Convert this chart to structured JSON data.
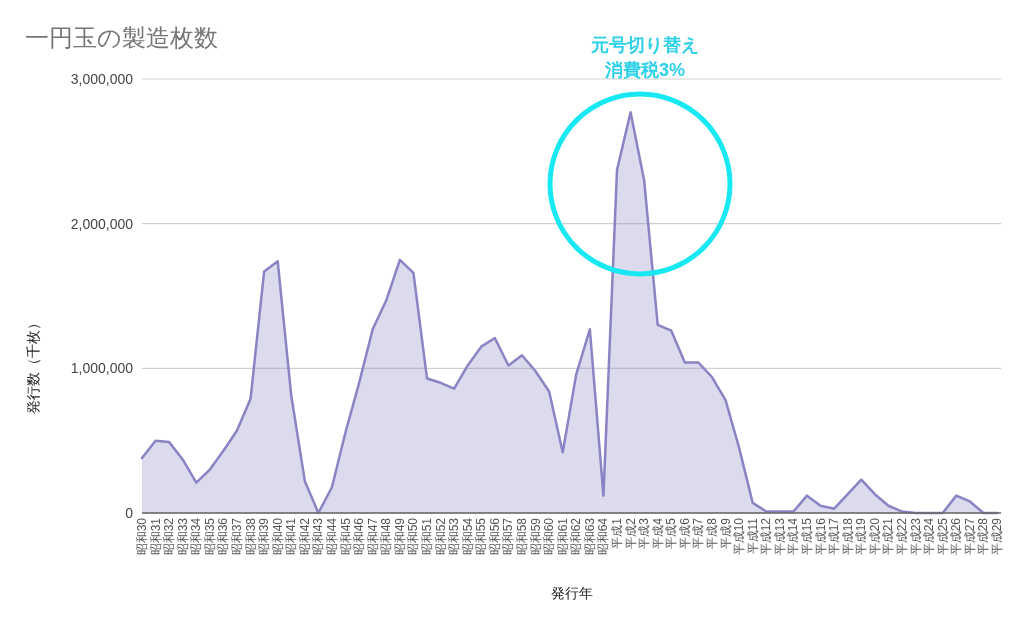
{
  "chart_data": {
    "type": "area",
    "title": "一円玉の製造枚数",
    "xlabel": "発行年",
    "ylabel": "発行数（千枚）",
    "categories": [
      "昭和30",
      "昭和31",
      "昭和32",
      "昭和33",
      "昭和34",
      "昭和35",
      "昭和36",
      "昭和37",
      "昭和38",
      "昭和39",
      "昭和40",
      "昭和41",
      "昭和42",
      "昭和43",
      "昭和44",
      "昭和45",
      "昭和46",
      "昭和47",
      "昭和48",
      "昭和49",
      "昭和50",
      "昭和51",
      "昭和52",
      "昭和53",
      "昭和54",
      "昭和55",
      "昭和56",
      "昭和57",
      "昭和58",
      "昭和59",
      "昭和60",
      "昭和61",
      "昭和62",
      "昭和63",
      "昭和64",
      "平成1",
      "平成2",
      "平成3",
      "平成4",
      "平成5",
      "平成6",
      "平成7",
      "平成8",
      "平成9",
      "平成10",
      "平成11",
      "平成12",
      "平成13",
      "平成14",
      "平成15",
      "平成16",
      "平成17",
      "平成18",
      "平成19",
      "平成20",
      "平成21",
      "平成22",
      "平成23",
      "平成24",
      "平成25",
      "平成26",
      "平成27",
      "平成28",
      "平成29"
    ],
    "series": [
      {
        "color": "#8a83c4",
        "values": [
          380000,
          500000,
          490000,
          370000,
          210000,
          300000,
          430000,
          570000,
          790000,
          1670000,
          1740000,
          810000,
          220000,
          0,
          180000,
          560000,
          900000,
          1270000,
          1470000,
          1750000,
          1660000,
          930000,
          900000,
          860000,
          1020000,
          1150000,
          1210000,
          1020000,
          1090000,
          980000,
          840000,
          420000,
          960000,
          1270000,
          120000,
          2370000,
          2770000,
          2300000,
          1300000,
          1260000,
          1040000,
          1040000,
          940000,
          780000,
          450000,
          70000,
          10000,
          10000,
          10000,
          120000,
          50000,
          30000,
          130000,
          230000,
          130000,
          50000,
          10000,
          0,
          0,
          0,
          120000,
          80000,
          0,
          0
        ]
      }
    ],
    "ylim": [
      0,
      3000000
    ],
    "yticks": [
      {
        "value": 0,
        "label": "0"
      },
      {
        "value": 1000000,
        "label": "1,000,000"
      },
      {
        "value": 2000000,
        "label": "2,000,000"
      },
      {
        "value": 3000000,
        "label": "3,000,000"
      }
    ],
    "grid": "y",
    "annotations": [
      "元号切り替え",
      "消費税3%"
    ]
  }
}
